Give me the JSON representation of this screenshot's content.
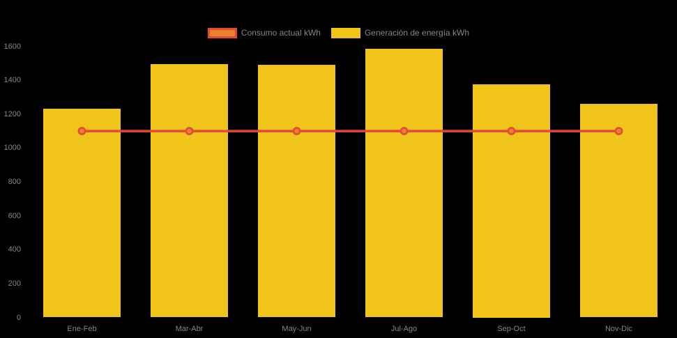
{
  "chart_data": {
    "type": "bar",
    "title": "",
    "categories": [
      "Ene-Feb",
      "Mar-Abr",
      "May-Jun",
      "Jul-Ago",
      "Sep-Oct",
      "Nov-Dic"
    ],
    "series": [
      {
        "name": "Consumo actual kWh",
        "type": "line",
        "values": [
          1100,
          1100,
          1100,
          1100,
          1100,
          1100
        ],
        "line_color": "#e2493b",
        "marker_fill": "#e8832c"
      },
      {
        "name": "Generación de energía kWh",
        "type": "bar",
        "values": [
          1230,
          1495,
          1490,
          1585,
          1375,
          1260
        ],
        "color": "#f0c419"
      }
    ],
    "xlabel": "",
    "ylabel": "",
    "ylim": [
      0,
      1600
    ],
    "yticks": [
      0,
      200,
      400,
      600,
      800,
      1000,
      1200,
      1400,
      1600
    ],
    "grid": false,
    "legend_position": "top-center",
    "background": "#000000",
    "axis_text_color": "#868686"
  }
}
